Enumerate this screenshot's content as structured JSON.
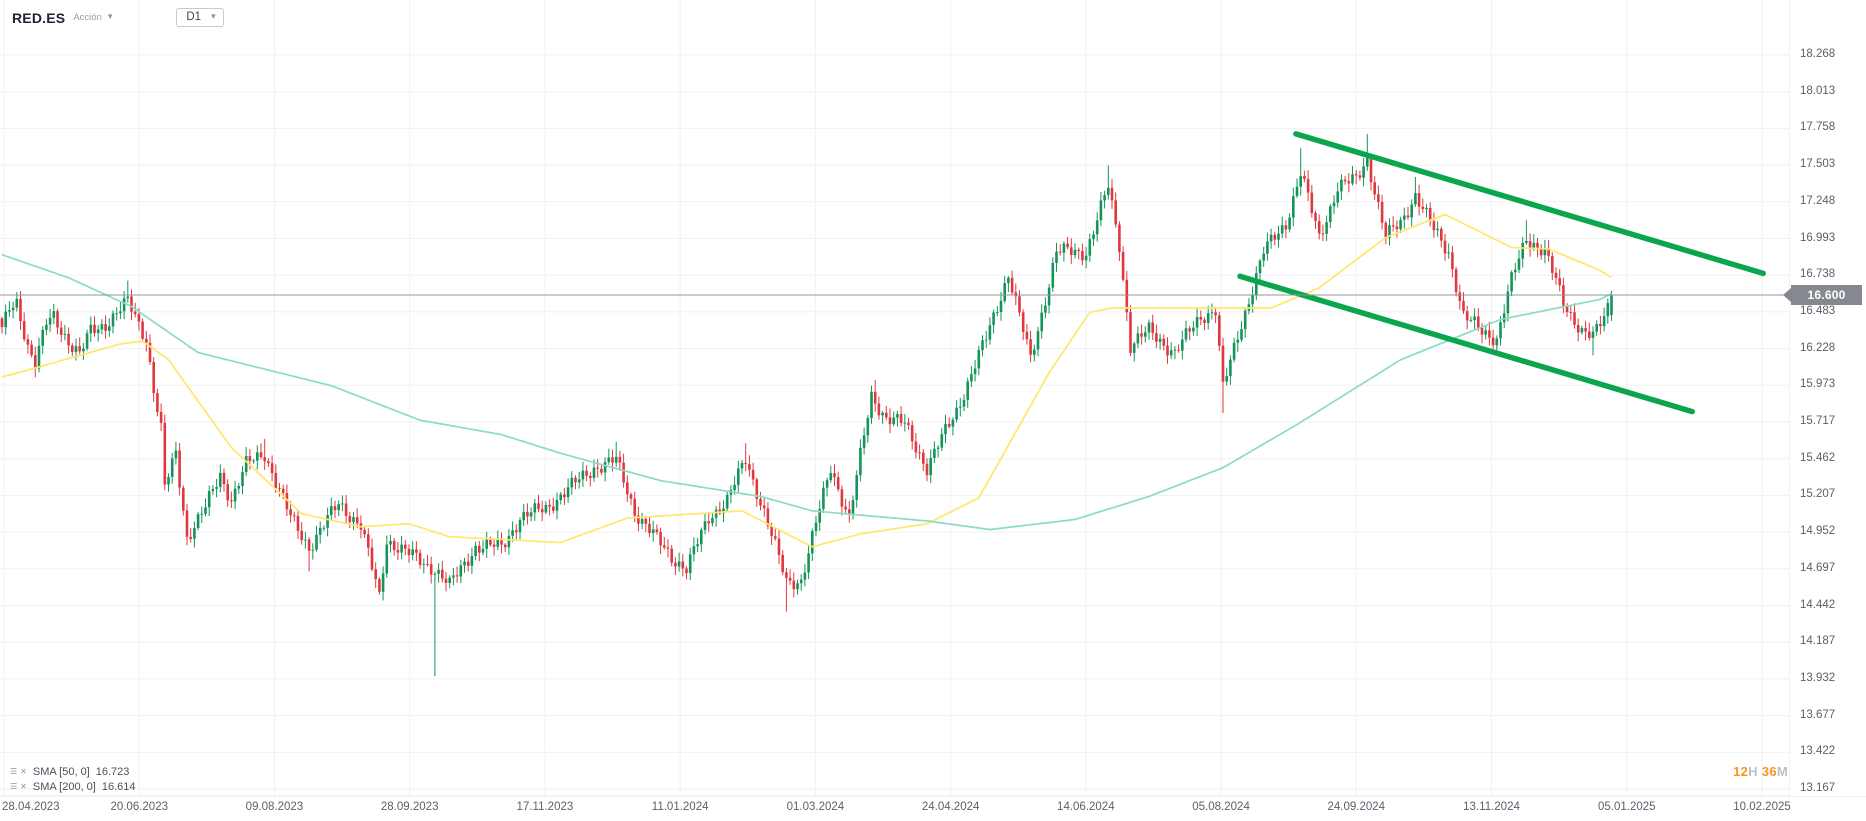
{
  "header": {
    "symbol": "RED.ES",
    "instrument_type": "Acción",
    "timeframe": "D1"
  },
  "icons": {
    "caret_down": "▾",
    "settings": "☰",
    "close": "✕"
  },
  "legend": {
    "sma50_label": "SMA [50, 0]",
    "sma50_value": "16.723",
    "sma200_label": "SMA [200, 0]",
    "sma200_value": "16.614"
  },
  "countdown": {
    "hours": "12",
    "h_suffix": "H",
    "minutes": "36",
    "m_suffix": "M"
  },
  "price_axis": {
    "current_price": "16.600"
  },
  "colors": {
    "candle_up": "#14945a",
    "candle_down": "#e0383f",
    "sma50": "#ffe76a",
    "sma200": "#8adcc2",
    "trendline": "#0aa64e",
    "grid": "#f0f1f4",
    "price_line": "#90949b",
    "badge": "#85888f",
    "countdown_accent": "#f7941d"
  },
  "chart_data": {
    "type": "candlestick",
    "title": "RED.ES — D1 candlestick chart with SMA(50), SMA(200) and descending channel",
    "x_axis_dates": [
      "28.04.2023",
      "20.06.2023",
      "09.08.2023",
      "28.09.2023",
      "17.11.2023",
      "11.01.2024",
      "01.03.2024",
      "24.04.2024",
      "14.06.2024",
      "05.08.2024",
      "24.09.2024",
      "13.11.2024",
      "05.01.2025",
      "10.02.2025"
    ],
    "y_axis_prices": [
      18.268,
      18.013,
      17.758,
      17.503,
      17.248,
      16.993,
      16.738,
      16.483,
      16.228,
      15.973,
      15.717,
      15.462,
      15.207,
      14.952,
      14.697,
      14.442,
      14.187,
      13.932,
      13.677,
      13.422,
      13.167
    ],
    "current_price": 16.6,
    "num_candles": 436,
    "close_anchors": [
      [
        0,
        16.35
      ],
      [
        2,
        16.5
      ],
      [
        4,
        16.55
      ],
      [
        7,
        16.25
      ],
      [
        9,
        16.12
      ],
      [
        12,
        16.4
      ],
      [
        14,
        16.45
      ],
      [
        18,
        16.28
      ],
      [
        21,
        16.18
      ],
      [
        24,
        16.35
      ],
      [
        28,
        16.4
      ],
      [
        32,
        16.5
      ],
      [
        34,
        16.55
      ],
      [
        36,
        16.45
      ],
      [
        39,
        16.3
      ],
      [
        41,
        15.95
      ],
      [
        43,
        15.66
      ],
      [
        44,
        15.26
      ],
      [
        47,
        15.5
      ],
      [
        50,
        14.92
      ],
      [
        55,
        15.12
      ],
      [
        59,
        15.35
      ],
      [
        62,
        15.18
      ],
      [
        66,
        15.42
      ],
      [
        71,
        15.5
      ],
      [
        78,
        15.05
      ],
      [
        83,
        14.85
      ],
      [
        91,
        15.15
      ],
      [
        97,
        15.0
      ],
      [
        102,
        14.5
      ],
      [
        104,
        14.9
      ],
      [
        110,
        14.8
      ],
      [
        115,
        14.72
      ],
      [
        117,
        14.7
      ],
      [
        121,
        14.58
      ],
      [
        128,
        14.85
      ],
      [
        135,
        14.85
      ],
      [
        140,
        15.05
      ],
      [
        147,
        15.12
      ],
      [
        153,
        15.25
      ],
      [
        160,
        15.4
      ],
      [
        166,
        15.45
      ],
      [
        171,
        15.1
      ],
      [
        177,
        14.9
      ],
      [
        181,
        14.78
      ],
      [
        185,
        14.7
      ],
      [
        191,
        15.05
      ],
      [
        196,
        15.18
      ],
      [
        201,
        15.45
      ],
      [
        206,
        15.1
      ],
      [
        212,
        14.6
      ],
      [
        216,
        14.62
      ],
      [
        224,
        15.4
      ],
      [
        229,
        15.05
      ],
      [
        235,
        15.9
      ],
      [
        239,
        15.75
      ],
      [
        244,
        15.7
      ],
      [
        250,
        15.4
      ],
      [
        258,
        15.8
      ],
      [
        266,
        16.3
      ],
      [
        272,
        16.75
      ],
      [
        278,
        16.15
      ],
      [
        285,
        16.9
      ],
      [
        293,
        16.9
      ],
      [
        299,
        17.35
      ],
      [
        302,
        16.95
      ],
      [
        305,
        16.25
      ],
      [
        310,
        16.35
      ],
      [
        317,
        16.2
      ],
      [
        324,
        16.45
      ],
      [
        328,
        16.5
      ],
      [
        330,
        15.95
      ],
      [
        335,
        16.4
      ],
      [
        341,
        16.9
      ],
      [
        347,
        17.1
      ],
      [
        351,
        17.45
      ],
      [
        356,
        17.0
      ],
      [
        361,
        17.35
      ],
      [
        366,
        17.4
      ],
      [
        369,
        17.55
      ],
      [
        374,
        17.0
      ],
      [
        378,
        17.1
      ],
      [
        382,
        17.3
      ],
      [
        387,
        17.05
      ],
      [
        391,
        16.9
      ],
      [
        395,
        16.45
      ],
      [
        400,
        16.35
      ],
      [
        404,
        16.3
      ],
      [
        408,
        16.7
      ],
      [
        412,
        17.0
      ],
      [
        417,
        16.9
      ],
      [
        422,
        16.55
      ],
      [
        427,
        16.35
      ],
      [
        430,
        16.3
      ],
      [
        433,
        16.45
      ],
      [
        435,
        16.6
      ]
    ],
    "special_wicks": [
      {
        "i": 4,
        "high": 16.62
      },
      {
        "i": 34,
        "high": 16.7
      },
      {
        "i": 71,
        "high": 15.6
      },
      {
        "i": 83,
        "low": 14.68
      },
      {
        "i": 117,
        "low": 13.95
      },
      {
        "i": 166,
        "high": 15.58
      },
      {
        "i": 185,
        "low": 14.65
      },
      {
        "i": 201,
        "high": 15.57
      },
      {
        "i": 212,
        "low": 14.4
      },
      {
        "i": 236,
        "high": 16.01
      },
      {
        "i": 299,
        "high": 17.5
      },
      {
        "i": 330,
        "low": 15.78
      },
      {
        "i": 351,
        "high": 17.62
      },
      {
        "i": 369,
        "high": 17.72
      },
      {
        "i": 382,
        "high": 17.42
      },
      {
        "i": 404,
        "low": 16.2
      },
      {
        "i": 412,
        "high": 17.12
      },
      {
        "i": 430,
        "low": 16.18
      }
    ],
    "last_candle": {
      "o": 16.46,
      "h": 16.63,
      "l": 16.42,
      "c": 16.6
    },
    "series": [
      {
        "name": "SMA 50",
        "last_value": 16.723,
        "color_key": "sma50",
        "anchors": [
          [
            0,
            16.03
          ],
          [
            10,
            16.1
          ],
          [
            32,
            16.26
          ],
          [
            38,
            16.28
          ],
          [
            45,
            16.15
          ],
          [
            62,
            15.54
          ],
          [
            81,
            15.08
          ],
          [
            97,
            14.99
          ],
          [
            110,
            15.01
          ],
          [
            121,
            14.92
          ],
          [
            151,
            14.88
          ],
          [
            169,
            15.05
          ],
          [
            200,
            15.1
          ],
          [
            219,
            14.85
          ],
          [
            232,
            14.94
          ],
          [
            250,
            15.01
          ],
          [
            264,
            15.19
          ],
          [
            283,
            16.06
          ],
          [
            294,
            16.48
          ],
          [
            300,
            16.51
          ],
          [
            343,
            16.51
          ],
          [
            356,
            16.65
          ],
          [
            374,
            17.0
          ],
          [
            390,
            17.16
          ],
          [
            408,
            16.93
          ],
          [
            418,
            16.92
          ],
          [
            432,
            16.77
          ],
          [
            435,
            16.72
          ]
        ]
      },
      {
        "name": "SMA 200",
        "last_value": 16.614,
        "color_key": "sma200",
        "anchors": [
          [
            0,
            16.88
          ],
          [
            18,
            16.72
          ],
          [
            35,
            16.52
          ],
          [
            53,
            16.2
          ],
          [
            89,
            15.97
          ],
          [
            113,
            15.73
          ],
          [
            135,
            15.63
          ],
          [
            151,
            15.5
          ],
          [
            178,
            15.31
          ],
          [
            205,
            15.2
          ],
          [
            219,
            15.1
          ],
          [
            250,
            15.03
          ],
          [
            267,
            14.97
          ],
          [
            290,
            15.04
          ],
          [
            310,
            15.2
          ],
          [
            330,
            15.4
          ],
          [
            350,
            15.7
          ],
          [
            378,
            16.15
          ],
          [
            405,
            16.43
          ],
          [
            432,
            16.57
          ],
          [
            435,
            16.61
          ]
        ]
      }
    ],
    "trendlines": [
      {
        "name": "channel-upper",
        "i1": 349.7,
        "p1": 17.72,
        "i2": 476.0,
        "p2": 16.75
      },
      {
        "name": "channel-lower",
        "i1": 334.6,
        "p1": 16.73,
        "i2": 456.8,
        "p2": 15.79
      }
    ]
  }
}
